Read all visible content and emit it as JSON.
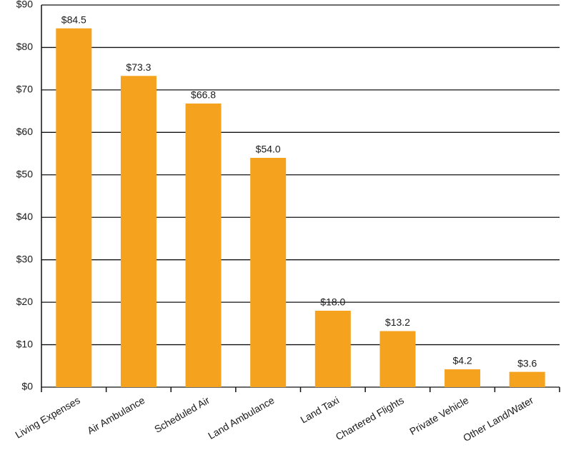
{
  "chart_data": {
    "type": "bar",
    "categories": [
      "Living Expenses",
      "Air Ambulance",
      "Scheduled Air",
      "Land Ambulance",
      "Land Taxi",
      "Chartered Flights",
      "Private Vehicle",
      "Other Land/Water"
    ],
    "values": [
      84.5,
      73.3,
      66.8,
      54.0,
      18.0,
      13.2,
      4.2,
      3.6
    ],
    "value_labels": [
      "$84.5",
      "$73.3",
      "$66.8",
      "$54.0",
      "$18.0",
      "$13.2",
      "$4.2",
      "$3.6"
    ],
    "color": "#f5a31e",
    "ylim": [
      0,
      90
    ],
    "yticks": [
      {
        "value": 0,
        "label": "$0"
      },
      {
        "value": 10,
        "label": "$10"
      },
      {
        "value": 20,
        "label": "$20"
      },
      {
        "value": 30,
        "label": "$30"
      },
      {
        "value": 40,
        "label": "$40"
      },
      {
        "value": 50,
        "label": "$50"
      },
      {
        "value": 60,
        "label": "$60"
      },
      {
        "value": 70,
        "label": "$70"
      },
      {
        "value": 80,
        "label": "$80"
      },
      {
        "value": 90,
        "label": "$90"
      }
    ],
    "grid": true
  }
}
